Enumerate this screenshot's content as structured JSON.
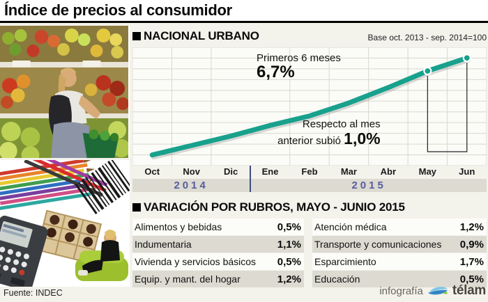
{
  "title": "Índice de precios al consumidor",
  "section1": {
    "title": "NACIONAL URBANO",
    "base_note": "Base oct. 2013 - sep. 2014=100"
  },
  "chart_data": {
    "type": "line",
    "title": "NACIONAL URBANO",
    "subtitle": "Base oct. 2013 - sep. 2014=100",
    "categories": [
      "Oct",
      "Nov",
      "Dic",
      "Ene",
      "Feb",
      "Mar",
      "Abr",
      "May",
      "Jun"
    ],
    "year_groups": [
      {
        "label": "2014",
        "months": 3
      },
      {
        "label": "2015",
        "months": 6
      }
    ],
    "relative_heights": [
      0.09,
      0.17,
      0.25,
      0.34,
      0.42,
      0.53,
      0.66,
      0.8,
      0.91
    ],
    "y_axis_tick_labels": "none shown (index, base = 100)",
    "grid": {
      "v_divisions": 9,
      "h_divisions": 11
    },
    "highlight_points": [
      "May",
      "Jun"
    ],
    "annotations": {
      "first6_label": "Primeros 6 meses",
      "first6_value": "6,7%",
      "mom_line1": "Respecto al mes",
      "mom_line2": "anterior subió ",
      "mom_value": "1,0%"
    }
  },
  "section2": {
    "title": "VARIACIÓN POR RUBROS, MAYO - JUNIO 2015",
    "left_rows": [
      {
        "label": "Alimentos y bebidas",
        "value": "0,5%"
      },
      {
        "label": "Indumentaria",
        "value": "1,1%"
      },
      {
        "label": "Vivienda y servicios básicos",
        "value": "0,5%"
      },
      {
        "label": "Equip. y mant. del hogar",
        "value": "1,2%"
      }
    ],
    "right_rows": [
      {
        "label": "Atención médica",
        "value": "1,2%"
      },
      {
        "label": "Transporte y comunicaciones",
        "value": "0,9%"
      },
      {
        "label": "Esparcimiento",
        "value": "1,7%"
      },
      {
        "label": "Educación",
        "value": "0,5%"
      }
    ]
  },
  "footer": {
    "source": "Fuente: INDEC",
    "credit_label": "infografía",
    "credit_brand": "télam"
  },
  "colors": {
    "line": "#18a18d",
    "line_shadow": "rgba(0,0,0,0.14)",
    "grid": "#d9d8d0",
    "plot_bg": "#fbfbf7",
    "divider": "#3e4c7e",
    "year_text": "#565d9c",
    "year_band": "#dcdad1",
    "bracket": "#222222",
    "accent_blue": "#3f9fd8"
  }
}
